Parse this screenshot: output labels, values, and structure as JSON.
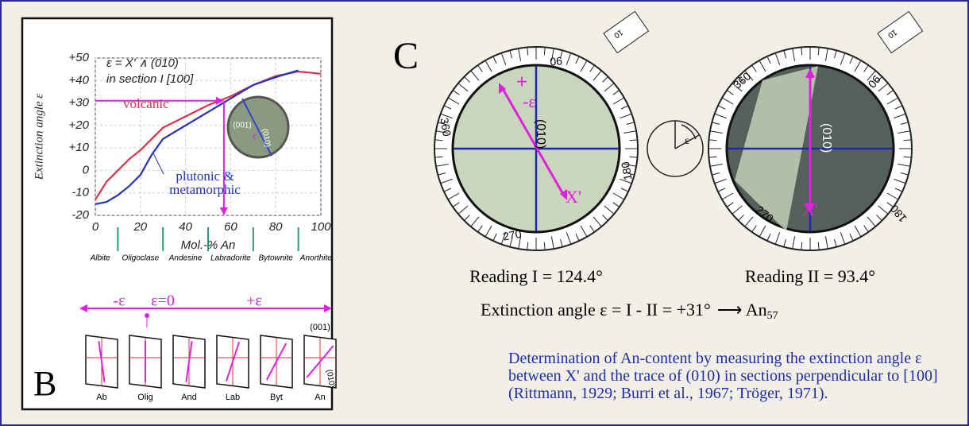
{
  "chart_data": {
    "type": "line",
    "y_label": "Extinction angle  ε",
    "x_label": "Mol.-% An",
    "formula": "ε = X' ∧ (010)",
    "section": "in section  I  [100]",
    "x": [
      0,
      5,
      10,
      15,
      20,
      25,
      30,
      40,
      50,
      60,
      70,
      80,
      90,
      100
    ],
    "series": [
      {
        "name": "volcanic",
        "color": "#e0304a",
        "values": [
          -13,
          -5,
          0,
          5,
          9,
          14,
          19,
          24,
          29,
          33,
          38,
          42,
          44,
          43
        ]
      },
      {
        "name": "plutonic & metamorphic",
        "color": "#2233bb",
        "values": [
          -15,
          -14,
          -11,
          -7,
          -2,
          7,
          14,
          20,
          26,
          32,
          38,
          41.5,
          44.5,
          null
        ]
      }
    ],
    "xlim": [
      0,
      100
    ],
    "xticks": [
      0,
      20,
      40,
      60,
      80,
      100
    ],
    "ylim": [
      -20,
      50
    ],
    "yticks": [
      -20,
      -10,
      0,
      {
        "value": 10,
        "label": "+10"
      },
      {
        "value": 20,
        "label": "+20"
      },
      {
        "value": 30,
        "label": "+30"
      },
      {
        "value": 40,
        "label": "+40"
      },
      {
        "value": 50,
        "label": "+50"
      }
    ],
    "marker": {
      "x": 57,
      "y": 31
    },
    "marker_color": "#e020e0",
    "boundaries": [
      10,
      30,
      50,
      70,
      90
    ],
    "minerals": [
      "Albite",
      "Oligoclase",
      "Andesine",
      "Labradorite",
      "Bytownite",
      "Anorthite"
    ]
  },
  "panel_b": {
    "letter": "B",
    "inset_labels": [
      "(001)",
      "ε",
      "(010)"
    ],
    "sign_labels": [
      "-ε",
      "ε=0",
      "+ε"
    ],
    "sketches": [
      "Ab",
      "Olig",
      "And",
      "Lab",
      "Byt",
      "An"
    ],
    "face_001": "(001)",
    "face_010": "(010)"
  },
  "panel_c": {
    "letter": "C",
    "stage_1": {
      "ring": [
        "90",
        "360",
        "180",
        "270"
      ],
      "vernier": "10",
      "marks": [
        "+",
        "-ε",
        "(010)",
        "X'"
      ],
      "reading": "Reading I = 124.4°"
    },
    "stage_2": {
      "ring": [
        "360",
        "90",
        "180",
        "270"
      ],
      "vernier": "10",
      "marks": [
        "(010)",
        "X'"
      ],
      "reading": "Reading II = 93.4°"
    },
    "rotation_label": "ε",
    "equation": "Extinction angle  ε = I - II = +31°",
    "result": "An",
    "result_sub": "57",
    "description": "Determination of An-content by measuring the extinction angle ε between X' and the trace of (010) in sections perpendicular to [100] (Rittmann, 1929; Burri et al., 1967; Tröger, 1971)."
  }
}
